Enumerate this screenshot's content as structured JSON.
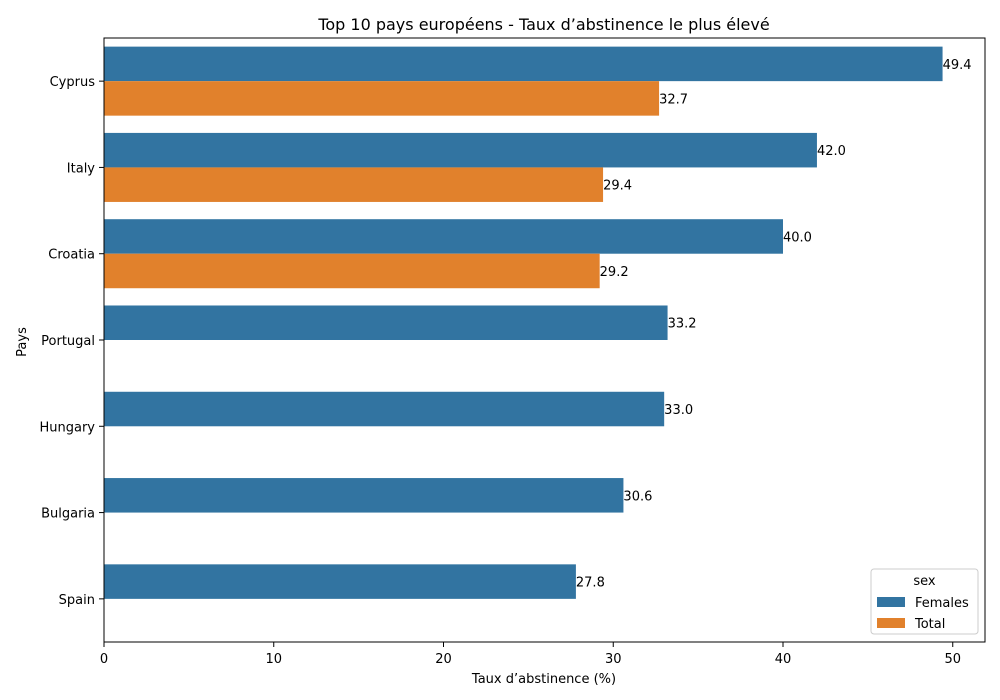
{
  "chart_data": {
    "type": "bar",
    "orientation": "horizontal",
    "title": "Top 10 pays européens - Taux d’abstinence le plus élevé",
    "xlabel": "Taux d’abstinence (%)",
    "ylabel": "Pays",
    "categories": [
      "Cyprus",
      "Italy",
      "Croatia",
      "Portugal",
      "Hungary",
      "Bulgaria",
      "Spain"
    ],
    "series": [
      {
        "name": "Females",
        "color": "#3274a1",
        "values": [
          49.4,
          42.0,
          40.0,
          33.2,
          33.0,
          30.6,
          27.8
        ]
      },
      {
        "name": "Total",
        "color": "#e1812c",
        "values": [
          32.7,
          29.4,
          29.2,
          null,
          null,
          null,
          null
        ]
      }
    ],
    "xlim": [
      0,
      51.9
    ],
    "xticks": [
      0,
      10,
      20,
      30,
      40,
      50
    ],
    "grid": false,
    "legend": {
      "title": "sex",
      "placement": "lower-right"
    }
  }
}
